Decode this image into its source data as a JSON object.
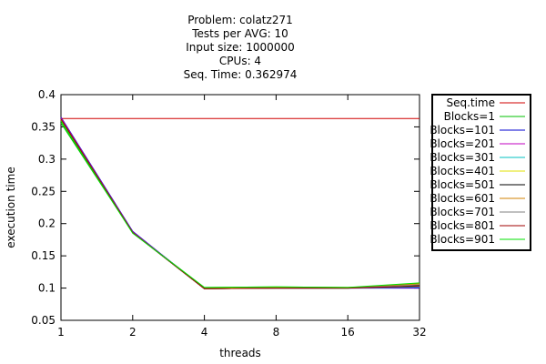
{
  "chart_data": {
    "type": "line",
    "title_lines": [
      "Problem: colatz271",
      "Tests per AVG: 10",
      "Input size: 1000000",
      "CPUs: 4",
      "Seq. Time: 0.362974"
    ],
    "xlabel": "threads",
    "ylabel": "execution time",
    "x": [
      1,
      2,
      4,
      8,
      16,
      32
    ],
    "x_scale": "log2",
    "xlim": [
      1,
      32
    ],
    "ylim": [
      0.05,
      0.4
    ],
    "x_ticks": [
      "1",
      "2",
      "4",
      "8",
      "16",
      "32"
    ],
    "y_ticks": [
      "0.05",
      "0.1",
      "0.15",
      "0.2",
      "0.25",
      "0.3",
      "0.35",
      "0.4"
    ],
    "y_tick_values": [
      0.05,
      0.1,
      0.15,
      0.2,
      0.25,
      0.3,
      0.35,
      0.4
    ],
    "grid": false,
    "legend_position": "right",
    "series": [
      {
        "name": "Seq.time",
        "color": "#d00000",
        "values": [
          0.362974,
          0.362974,
          0.362974,
          0.362974,
          0.362974,
          0.362974
        ]
      },
      {
        "name": "Blocks=1",
        "color": "#00c000",
        "values": [
          0.356,
          0.186,
          0.101,
          0.102,
          0.101,
          0.104
        ]
      },
      {
        "name": "Blocks=101",
        "color": "#0000d0",
        "values": [
          0.365,
          0.188,
          0.099,
          0.1,
          0.1,
          0.1
        ]
      },
      {
        "name": "Blocks=201",
        "color": "#c000c0",
        "values": [
          0.364,
          0.187,
          0.099,
          0.1,
          0.1,
          0.101
        ]
      },
      {
        "name": "Blocks=301",
        "color": "#00c0c0",
        "values": [
          0.362,
          0.186,
          0.099,
          0.1,
          0.1,
          0.102
        ]
      },
      {
        "name": "Blocks=401",
        "color": "#e0e000",
        "values": [
          0.361,
          0.186,
          0.1,
          0.101,
          0.101,
          0.106
        ]
      },
      {
        "name": "Blocks=501",
        "color": "#000000",
        "values": [
          0.362,
          0.186,
          0.099,
          0.1,
          0.1,
          0.104
        ]
      },
      {
        "name": "Blocks=601",
        "color": "#d08000",
        "values": [
          0.361,
          0.186,
          0.099,
          0.1,
          0.1,
          0.107
        ]
      },
      {
        "name": "Blocks=701",
        "color": "#808080",
        "values": [
          0.362,
          0.186,
          0.099,
          0.1,
          0.1,
          0.105
        ]
      },
      {
        "name": "Blocks=801",
        "color": "#a00000",
        "values": [
          0.362,
          0.186,
          0.099,
          0.1,
          0.1,
          0.103
        ]
      },
      {
        "name": "Blocks=901",
        "color": "#00e000",
        "values": [
          0.359,
          0.185,
          0.101,
          0.102,
          0.101,
          0.108
        ]
      }
    ]
  }
}
